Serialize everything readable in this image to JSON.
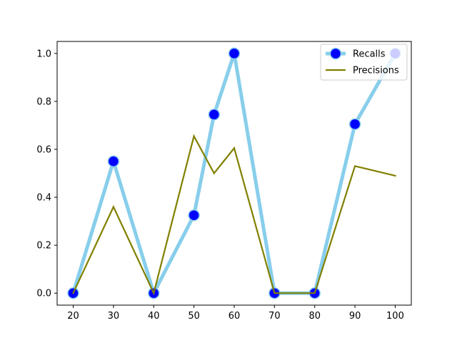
{
  "chart_data": {
    "type": "line",
    "x": [
      20,
      30,
      40,
      50,
      55,
      60,
      70,
      80,
      90,
      100
    ],
    "xticks": [
      20,
      30,
      40,
      50,
      60,
      70,
      80,
      90,
      100
    ],
    "yticks": [
      0.0,
      0.2,
      0.4,
      0.6,
      0.8,
      1.0
    ],
    "xlim": [
      16,
      104
    ],
    "ylim": [
      -0.05,
      1.05
    ],
    "grid": false,
    "legend_position": "top-right",
    "series": [
      {
        "name": "Recalls",
        "values": [
          0.0,
          0.55,
          0.0,
          0.325,
          0.745,
          1.0,
          0.0,
          0.0,
          0.705,
          1.0
        ],
        "line_color": "#87ceeb",
        "marker_color": "#0000ff",
        "marker": "circle"
      },
      {
        "name": "Precisions",
        "values": [
          0.0,
          0.36,
          0.0,
          0.655,
          0.5,
          0.605,
          0.0,
          0.0,
          0.53,
          0.49
        ],
        "line_color": "#808000",
        "marker": "none"
      }
    ]
  }
}
